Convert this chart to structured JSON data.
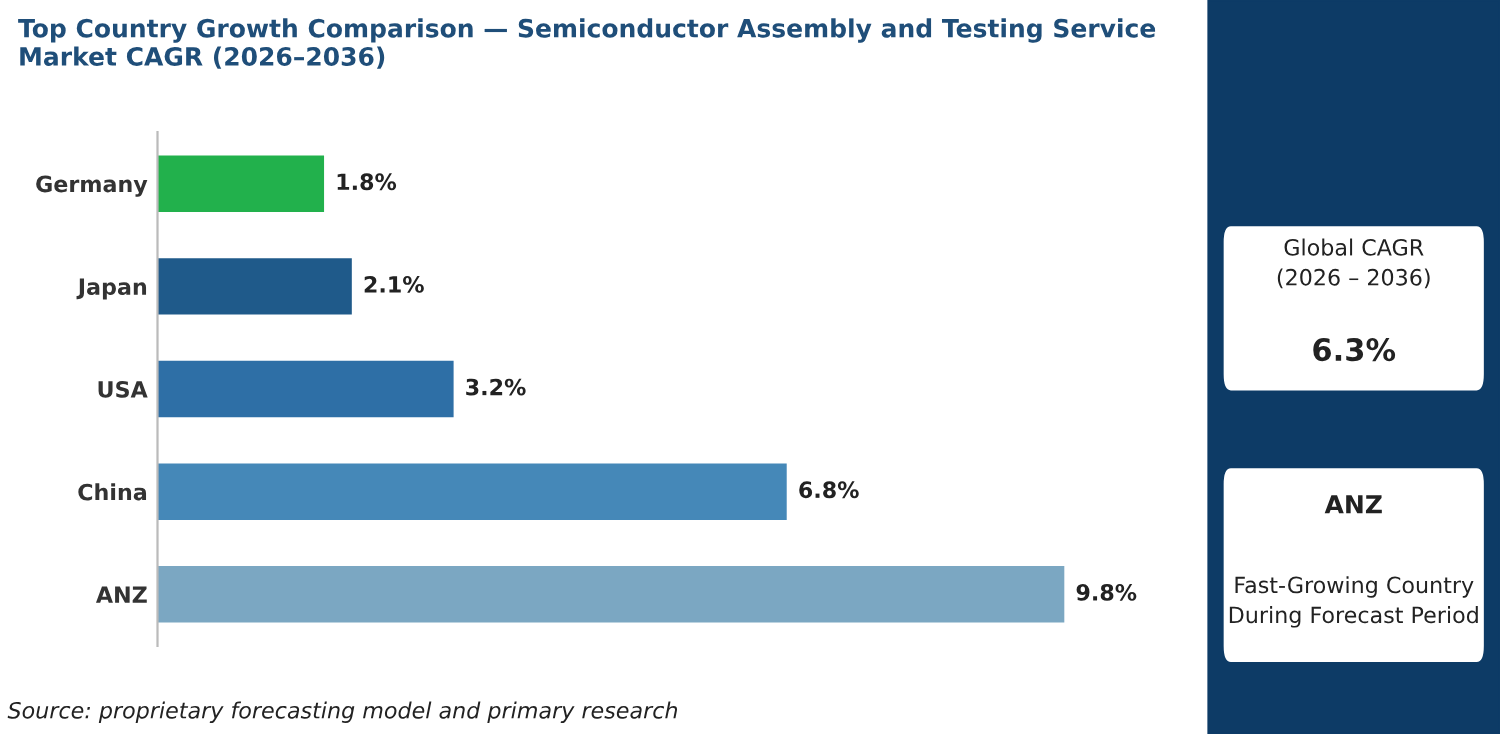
{
  "chart_data": [
    {
      "type": "bar",
      "orientation": "horizontal",
      "title": "Top Country Growth Comparison — Semiconductor Assembly and Testing Service\nMarket CAGR (2026–2036)",
      "categories": [
        "Germany",
        "Japan",
        "USA",
        "China",
        "ANZ"
      ],
      "values": [
        1.8,
        2.1,
        3.2,
        6.8,
        9.8
      ],
      "colors": [
        "#22b14c",
        "#1f5a8a",
        "#2e6fa6",
        "#4588b8",
        "#7ba7c2"
      ],
      "value_labels": [
        "1.8%",
        "2.1%",
        "3.2%",
        "6.8%",
        "9.8%"
      ],
      "annotations": [
        "Source: proprietary forecasting model and primary research"
      ]
    },
    {
      "type": "other",
      "annotations": [
        "Global CAGR\n(2026 – 2036)",
        "6.3%",
        "ANZ",
        "Fast-Growing Country\nDuring Forecast Period"
      ]
    }
  ]
}
